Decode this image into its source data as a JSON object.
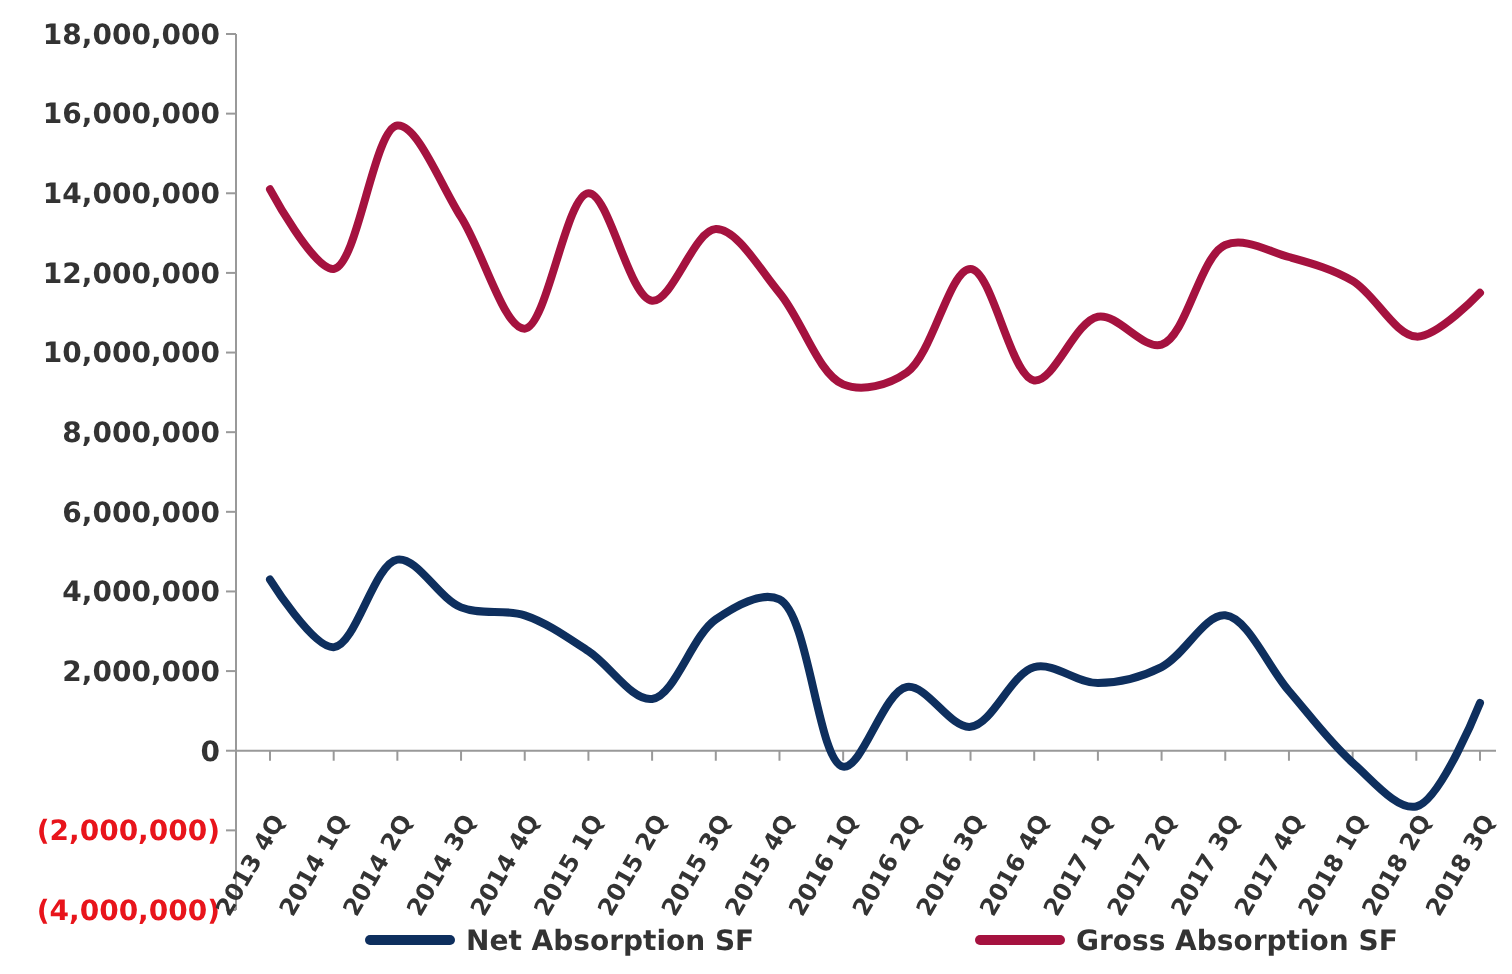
{
  "chart_data": {
    "type": "line",
    "categories": [
      "2013 4Q",
      "2014 1Q",
      "2014 2Q",
      "2014 3Q",
      "2014 4Q",
      "2015 1Q",
      "2015 2Q",
      "2015 3Q",
      "2015 4Q",
      "2016 1Q",
      "2016 2Q",
      "2016 3Q",
      "2016 4Q",
      "2017 1Q",
      "2017 2Q",
      "2017 3Q",
      "2017 4Q",
      "2018 1Q",
      "2018 2Q",
      "2018 3Q"
    ],
    "series": [
      {
        "name": "Net Absorption SF",
        "color": "#0e2f5e",
        "values": [
          4300000,
          2600000,
          4800000,
          3600000,
          3400000,
          2500000,
          1300000,
          3300000,
          3800000,
          -400000,
          1600000,
          600000,
          2100000,
          1700000,
          2100000,
          3400000,
          1500000,
          -300000,
          -1400000,
          1200000
        ]
      },
      {
        "name": "Gross Absorption SF",
        "color": "#a5123f",
        "values": [
          14100000,
          12100000,
          15700000,
          13400000,
          10600000,
          14000000,
          11300000,
          13100000,
          11500000,
          9200000,
          9500000,
          12100000,
          9300000,
          10900000,
          10200000,
          12700000,
          12400000,
          11800000,
          10400000,
          11500000
        ]
      }
    ],
    "ylim": [
      -4000000,
      18000000
    ],
    "yticks": [
      {
        "value": -4000000,
        "label": "(4,000,000)"
      },
      {
        "value": -2000000,
        "label": "(2,000,000)"
      },
      {
        "value": 0,
        "label": "0"
      },
      {
        "value": 2000000,
        "label": "2,000,000"
      },
      {
        "value": 4000000,
        "label": "4,000,000"
      },
      {
        "value": 6000000,
        "label": "6,000,000"
      },
      {
        "value": 8000000,
        "label": "8,000,000"
      },
      {
        "value": 10000000,
        "label": "10,000,000"
      },
      {
        "value": 12000000,
        "label": "12,000,000"
      },
      {
        "value": 14000000,
        "label": "14,000,000"
      },
      {
        "value": 16000000,
        "label": "16,000,000"
      },
      {
        "value": 18000000,
        "label": "18,000,000"
      }
    ],
    "legend": "bottom",
    "marker": "none",
    "line_style": "solid",
    "grid": false
  }
}
